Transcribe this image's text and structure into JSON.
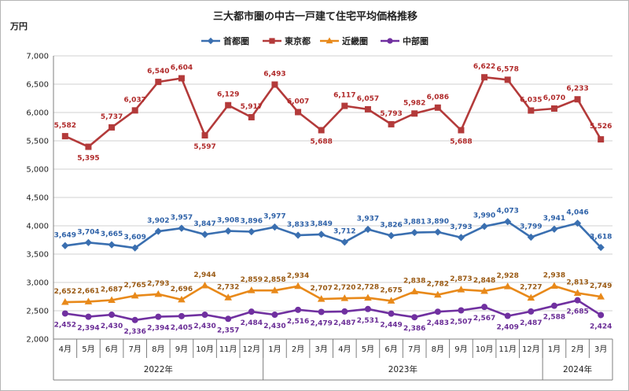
{
  "chart_data": {
    "type": "line",
    "title": "三大都市圏の中古一戸建て住宅平均価格推移",
    "ylabel": "万円",
    "ylim": [
      2000,
      7000
    ],
    "yticks": [
      "2,000",
      "2,500",
      "3,000",
      "3,500",
      "4,000",
      "4,500",
      "5,000",
      "5,500",
      "6,000",
      "6,500",
      "7,000"
    ],
    "categories": [
      "4月",
      "5月",
      "6月",
      "7月",
      "8月",
      "9月",
      "10月",
      "11月",
      "12月",
      "1月",
      "2月",
      "3月",
      "4月",
      "5月",
      "6月",
      "7月",
      "8月",
      "9月",
      "10月",
      "11月",
      "12月",
      "1月",
      "2月",
      "3月"
    ],
    "years": [
      {
        "label": "2022年",
        "start": 0,
        "end": 8
      },
      {
        "label": "2023年",
        "start": 9,
        "end": 20
      },
      {
        "label": "2024年",
        "start": 21,
        "end": 23
      }
    ],
    "legend_position": "top",
    "series": [
      {
        "name": "首都圏",
        "color": "#3a6fb0",
        "label_color": "#2f62a8",
        "marker": "diamond",
        "values": [
          3649,
          3704,
          3665,
          3609,
          3902,
          3957,
          3847,
          3908,
          3896,
          3977,
          3833,
          3849,
          3712,
          3937,
          3826,
          3881,
          3890,
          3793,
          3990,
          4073,
          3799,
          3941,
          4046,
          3618
        ],
        "labels": [
          "3,649",
          "3,704",
          "3,665",
          "3,609",
          "3,902",
          "3,957",
          "3,847",
          "3,908",
          "3,896",
          "3,977",
          "3,833",
          "3,849",
          "3,712",
          "3,937",
          "3,826",
          "3,881",
          "3,890",
          "3,793",
          "3,990",
          "4,073",
          "3,799",
          "3,941",
          "4,046",
          "3,618"
        ]
      },
      {
        "name": "東京都",
        "color": "#b33a3a",
        "label_color": "#b02a2a",
        "marker": "square",
        "values": [
          5582,
          5395,
          5737,
          6037,
          6540,
          6604,
          5597,
          6129,
          5917,
          6493,
          6007,
          5688,
          6117,
          6057,
          5793,
          5982,
          6086,
          5688,
          6622,
          6578,
          6035,
          6070,
          6233,
          5526
        ],
        "labels": [
          "5,582",
          "5,395",
          "5,737",
          "6,037",
          "6,540",
          "6,604",
          "5,597",
          "6,129",
          "5,917",
          "6,493",
          "6,007",
          "5,688",
          "6,117",
          "6,057",
          "5,793",
          "5,982",
          "6,086",
          "5,688",
          "6,622",
          "6,578",
          "6,035",
          "6,070",
          "6,233",
          "5,526"
        ]
      },
      {
        "name": "近畿圏",
        "color": "#e8891a",
        "label_color": "#9a5a14",
        "marker": "triangle",
        "values": [
          2652,
          2661,
          2687,
          2765,
          2793,
          2696,
          2944,
          2732,
          2859,
          2858,
          2934,
          2707,
          2720,
          2728,
          2675,
          2838,
          2782,
          2873,
          2848,
          2928,
          2727,
          2938,
          2813,
          2749
        ],
        "labels": [
          "2,652",
          "2,661",
          "2,687",
          "2,765",
          "2,793",
          "2,696",
          "2,944",
          "2,732",
          "2,859",
          "2,858",
          "2,934",
          "2,707",
          "2,720",
          "2,728",
          "2,675",
          "2,838",
          "2,782",
          "2,873",
          "2,848",
          "2,928",
          "2,727",
          "2,938",
          "2,813",
          "2,749"
        ]
      },
      {
        "name": "中部圏",
        "color": "#7030a0",
        "label_color": "#6a2d96",
        "marker": "circle",
        "values": [
          2452,
          2394,
          2430,
          2336,
          2394,
          2405,
          2430,
          2357,
          2484,
          2430,
          2516,
          2479,
          2487,
          2531,
          2449,
          2386,
          2483,
          2507,
          2567,
          2409,
          2487,
          2588,
          2685,
          2424
        ],
        "labels": [
          "2,452",
          "2,394",
          "2,430",
          "2,336",
          "2,394",
          "2,405",
          "2,430",
          "2,357",
          "2,484",
          "2,430",
          "2,516",
          "2,479",
          "2,487",
          "2,531",
          "2,449",
          "2,386",
          "2,483",
          "2,507",
          "2,567",
          "2,409",
          "2,487",
          "2,588",
          "2,685",
          "2,424"
        ]
      }
    ]
  }
}
